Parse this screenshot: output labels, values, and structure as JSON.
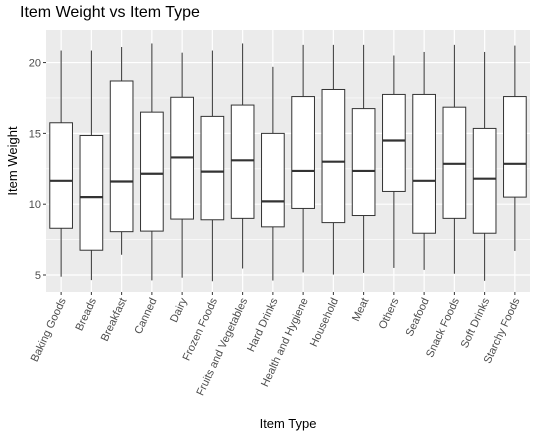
{
  "chart_data": {
    "type": "boxplot",
    "title": "Item Weight vs Item Type",
    "xlabel": "Item Type",
    "ylabel": "Item Weight",
    "ylim": [
      3.8,
      22.3
    ],
    "yticks": [
      5,
      10,
      15,
      20
    ],
    "grid": true,
    "legend": "none",
    "colors": {
      "panel": "#ebebeb",
      "grid_major": "#ffffff",
      "box_fill": "#ffffff",
      "box_stroke": "#333333",
      "text": "#4d4d4d"
    },
    "categories": [
      "Baking Goods",
      "Breads",
      "Breakfast",
      "Canned",
      "Dairy",
      "Frozen Foods",
      "Fruits and Vegetables",
      "Hard Drinks",
      "Health and Hygiene",
      "Household",
      "Meat",
      "Others",
      "Seafood",
      "Snack Foods",
      "Soft Drinks",
      "Starchy Foods"
    ],
    "boxes": [
      {
        "min": 4.88,
        "q1": 8.3,
        "median": 11.65,
        "q3": 15.75,
        "max": 20.85
      },
      {
        "min": 4.64,
        "q1": 6.75,
        "median": 10.5,
        "q3": 14.85,
        "max": 20.85
      },
      {
        "min": 6.43,
        "q1": 8.06,
        "median": 11.6,
        "q3": 18.7,
        "max": 21.1
      },
      {
        "min": 4.62,
        "q1": 8.1,
        "median": 12.15,
        "q3": 16.5,
        "max": 21.35
      },
      {
        "min": 4.81,
        "q1": 8.95,
        "median": 13.3,
        "q3": 17.55,
        "max": 20.7
      },
      {
        "min": 4.56,
        "q1": 8.9,
        "median": 12.3,
        "q3": 16.2,
        "max": 20.85
      },
      {
        "min": 5.46,
        "q1": 9.0,
        "median": 13.1,
        "q3": 17.0,
        "max": 21.35
      },
      {
        "min": 4.61,
        "q1": 8.4,
        "median": 10.2,
        "q3": 15.0,
        "max": 19.7
      },
      {
        "min": 5.18,
        "q1": 9.7,
        "median": 12.35,
        "q3": 17.6,
        "max": 21.25
      },
      {
        "min": 5.03,
        "q1": 8.7,
        "median": 13.0,
        "q3": 18.1,
        "max": 21.25
      },
      {
        "min": 5.15,
        "q1": 9.2,
        "median": 12.35,
        "q3": 16.75,
        "max": 21.25
      },
      {
        "min": 5.5,
        "q1": 10.9,
        "median": 14.5,
        "q3": 17.75,
        "max": 20.5
      },
      {
        "min": 5.36,
        "q1": 7.95,
        "median": 11.65,
        "q3": 17.75,
        "max": 20.75
      },
      {
        "min": 5.09,
        "q1": 9.0,
        "median": 12.85,
        "q3": 16.85,
        "max": 21.25
      },
      {
        "min": 4.59,
        "q1": 7.95,
        "median": 11.8,
        "q3": 15.35,
        "max": 20.75
      },
      {
        "min": 6.7,
        "q1": 10.5,
        "median": 12.85,
        "q3": 17.6,
        "max": 21.2
      }
    ]
  }
}
